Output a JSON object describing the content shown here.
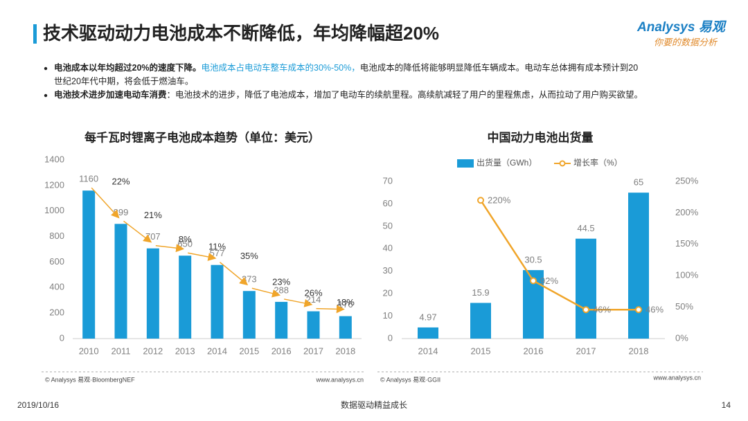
{
  "header": {
    "title": "技术驱动动力电池成本不断降低，年均降幅超20%",
    "logo": "Analysys 易观",
    "slogan": "你要的数据分析"
  },
  "bullets": [
    {
      "bold": "电池成本以年均超过20%的速度下降。",
      "highlight": "电池成本占电动车整车成本的30%-50%，",
      "text_line1": "电池成本的降低将能够明显降低车辆成本。电动车总体拥有成本预计到20",
      "text_line2": "世纪20年代中期，将会低于燃油车。"
    },
    {
      "bold": "电池技术进步加速电动车消费",
      "text_line1": "：电池技术的进步，降低了电池成本，增加了电动车的续航里程。高续航减轻了用户的里程焦虑，从而拉动了用户购买欲望。"
    }
  ],
  "chart_data": [
    {
      "type": "bar",
      "title": "每千瓦时锂离子电池成本趋势（单位：美元）",
      "categories": [
        "2010",
        "2011",
        "2012",
        "2013",
        "2014",
        "2015",
        "2016",
        "2017",
        "2018"
      ],
      "values": [
        1160,
        899,
        707,
        650,
        577,
        373,
        288,
        214,
        176
      ],
      "color": "#1a9bd7",
      "annotations": [
        "22%",
        "21%",
        "8%",
        "11%",
        "35%",
        "23%",
        "26%",
        "18%"
      ],
      "ylim": [
        0,
        1400
      ],
      "yticks": [
        0,
        200,
        400,
        600,
        800,
        1000,
        1200,
        1400
      ],
      "grid": false,
      "source": "© Analysys 易观·BloombergNEF",
      "website": "www.analysys.cn"
    },
    {
      "type": "bar-line",
      "title": "中国动力电池出货量",
      "categories": [
        "2014",
        "2015",
        "2016",
        "2017",
        "2018"
      ],
      "series": [
        {
          "name": "出货量（GWh）",
          "color": "#1a9bd7",
          "values": [
            4.97,
            15.9,
            30.5,
            44.5,
            65
          ]
        },
        {
          "name": "增长率（%）",
          "color": "#f0a52a",
          "axis": "y2",
          "values": [
            null,
            220,
            92,
            46,
            46
          ],
          "value_labels": [
            null,
            "220%",
            "92%",
            "46%",
            "46%"
          ]
        }
      ],
      "ylim": [
        0,
        70
      ],
      "yticks": [
        0,
        10,
        20,
        30,
        40,
        50,
        60,
        70
      ],
      "y2lim": [
        0,
        250
      ],
      "y2ticks": [
        {
          "value": 0,
          "label": "0%"
        },
        {
          "value": 50,
          "label": "50%"
        },
        {
          "value": 100,
          "label": "100%"
        },
        {
          "value": 150,
          "label": "150%"
        },
        {
          "value": 200,
          "label": "200%"
        },
        {
          "value": 250,
          "label": "250%"
        }
      ],
      "legend": "top",
      "grid": false,
      "source": "© Analysys 易观·GGII",
      "website": "www.analysys.cn"
    }
  ],
  "footer": {
    "date": "2019/10/16",
    "slogan": "数据驱动精益成长",
    "page": "14"
  }
}
